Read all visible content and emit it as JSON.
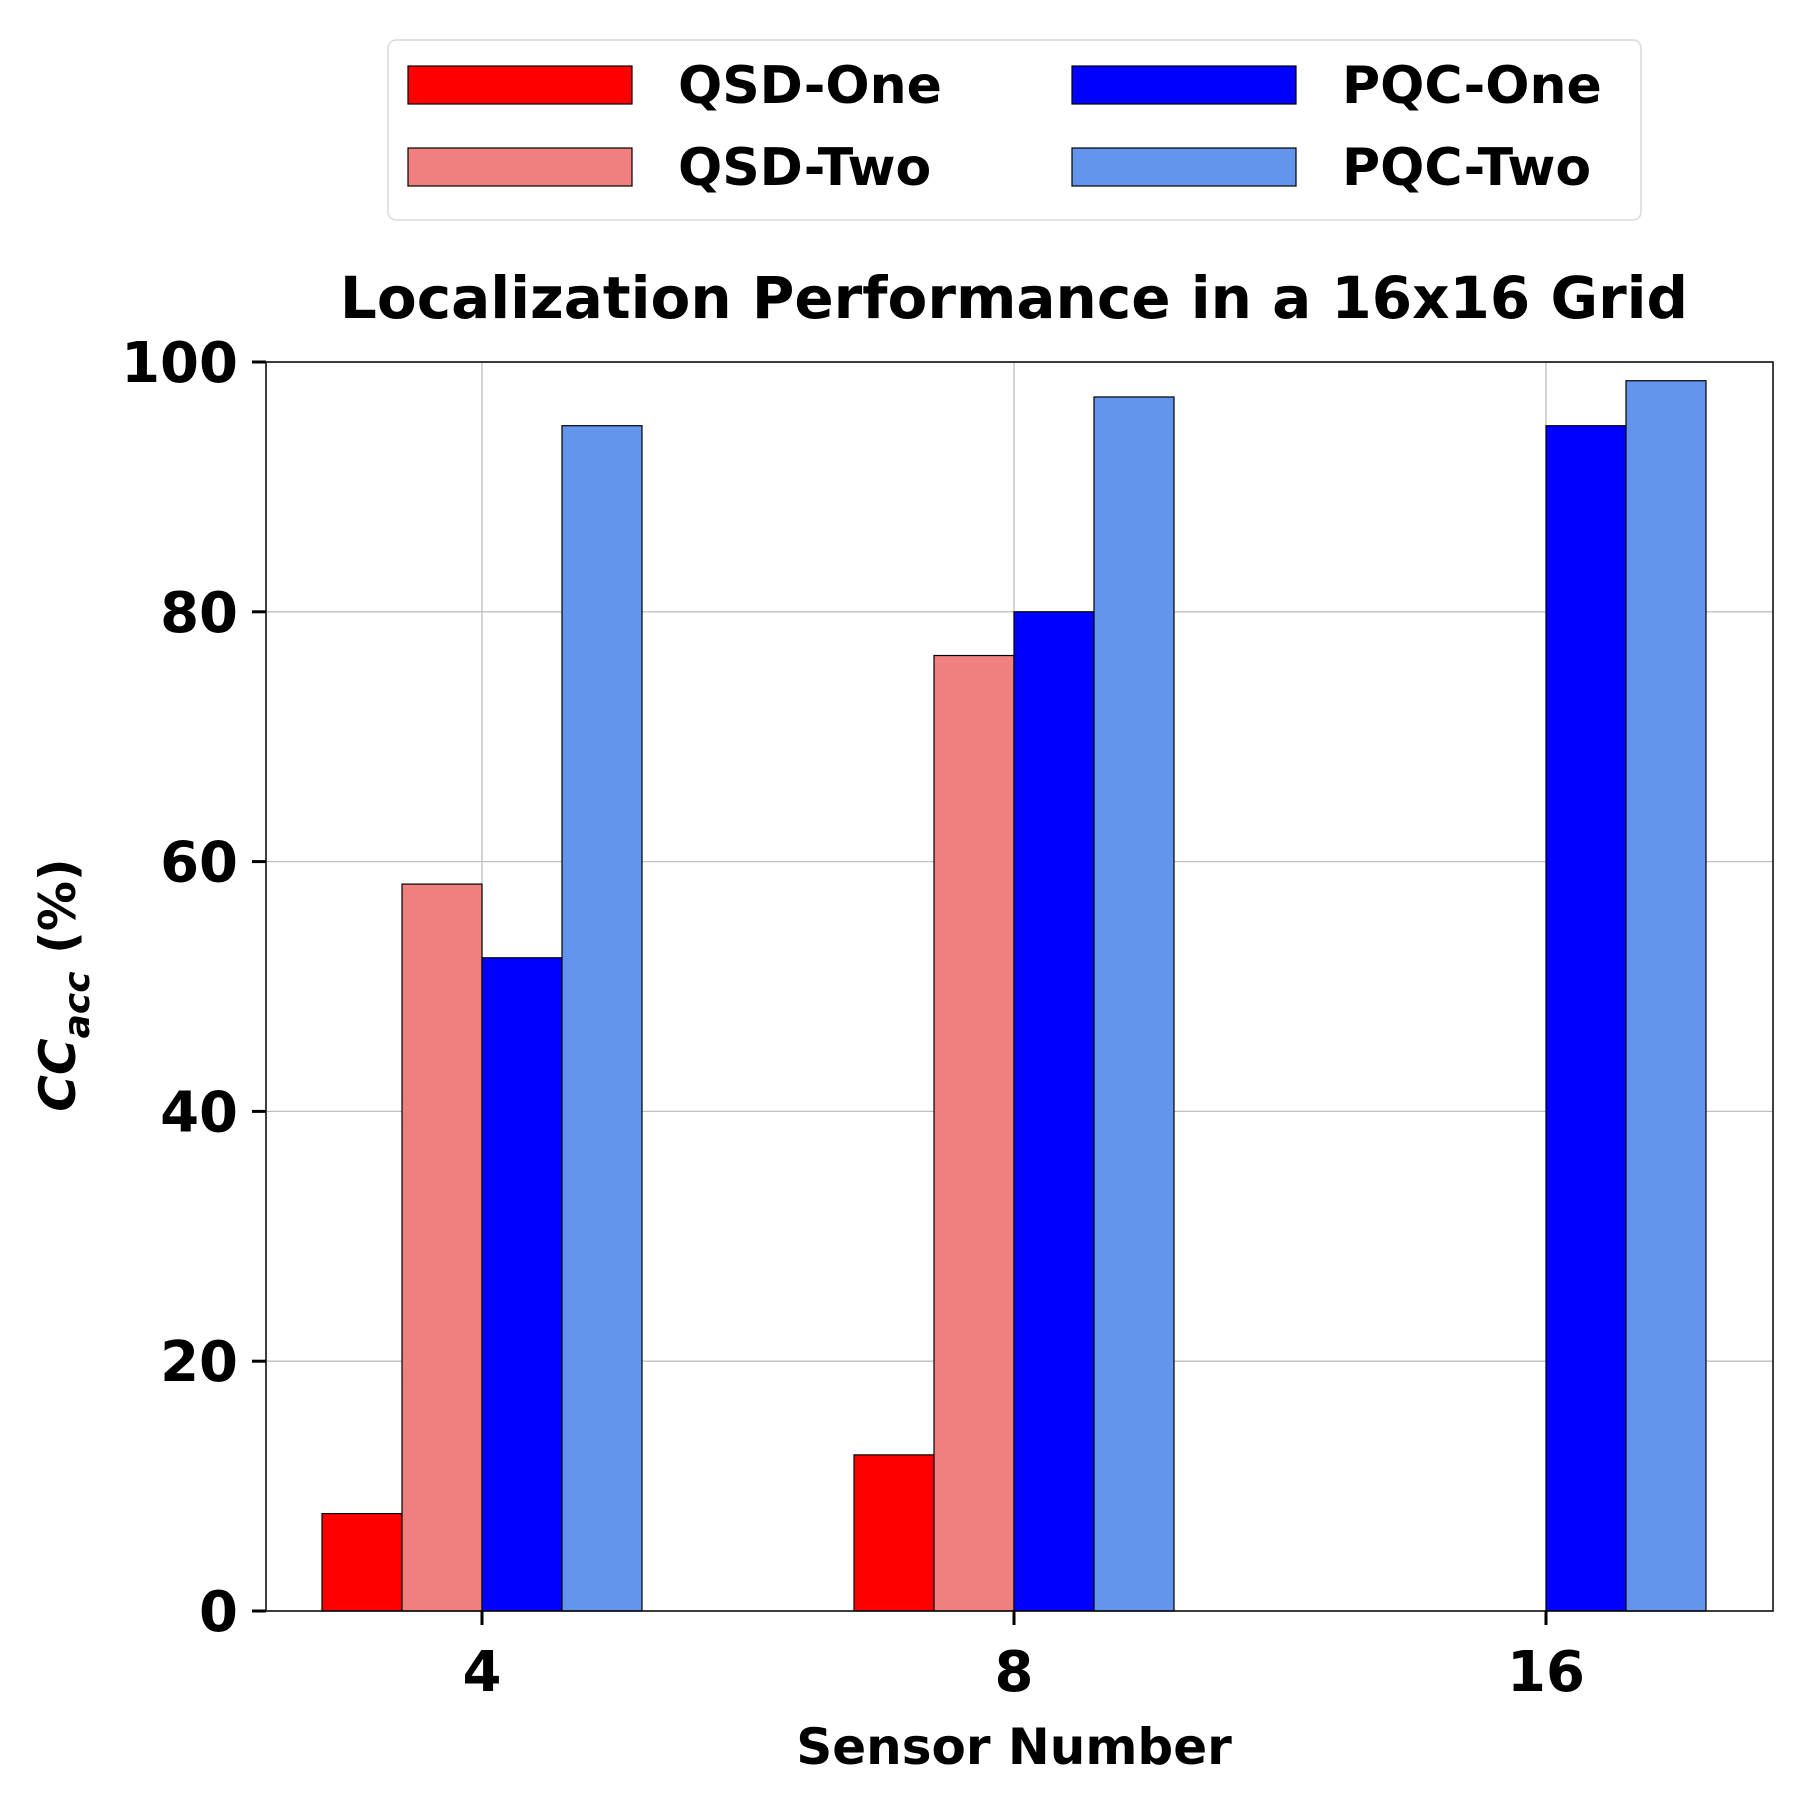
{
  "chart_data": {
    "type": "bar",
    "title": "Localization Performance in a 16x16 Grid",
    "xlabel": "Sensor Number",
    "ylabel": {
      "main": "CC",
      "subscript": "acc",
      "suffix": " (%)"
    },
    "categories": [
      "4",
      "8",
      "16"
    ],
    "series": [
      {
        "name": "QSD-One",
        "color": "#ff0000",
        "values": [
          7.8,
          12.5,
          0
        ]
      },
      {
        "name": "QSD-Two",
        "color": "#f08080",
        "values": [
          58.2,
          76.5,
          0
        ]
      },
      {
        "name": "PQC-One",
        "color": "#0000ff",
        "values": [
          52.3,
          80.0,
          94.9
        ]
      },
      {
        "name": "PQC-Two",
        "color": "#6495ed",
        "values": [
          94.9,
          97.2,
          98.5
        ]
      }
    ],
    "ylim": [
      0,
      100
    ],
    "yticks": [
      0,
      20,
      40,
      60,
      80,
      100
    ],
    "grid": true,
    "legend_position": "top-center"
  }
}
